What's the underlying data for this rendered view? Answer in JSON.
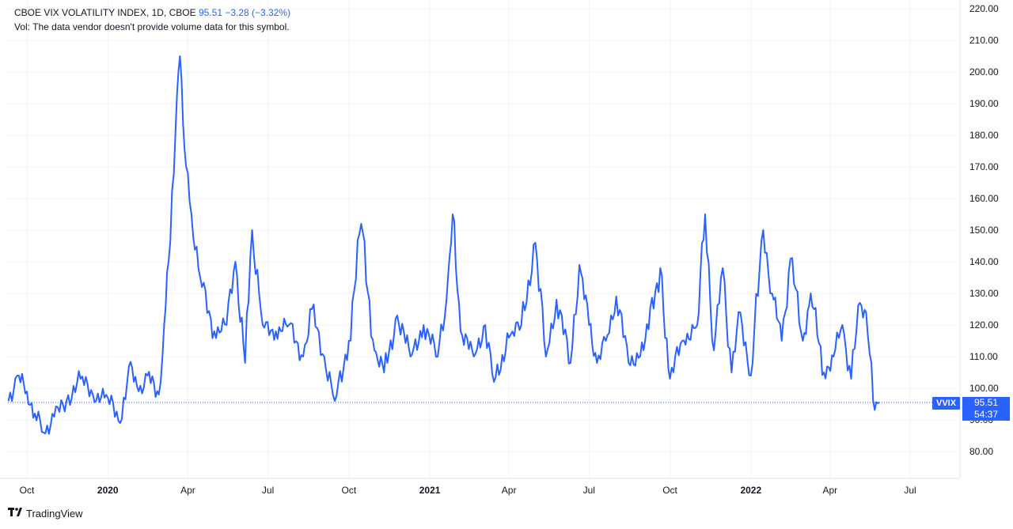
{
  "legend": {
    "symbol_line": "CBOE VIX VOLATILITY INDEX, 1D, CBOE",
    "last": "95.51",
    "change": "−3.28 (−3.32%)",
    "volume_note": "Vol: The data vendor doesn't provide volume data for this symbol."
  },
  "price_scale": {
    "symbol_tag": "VVIX",
    "last_price": "95.51",
    "countdown": "54:37"
  },
  "brand": {
    "name": "TradingView"
  },
  "colors": {
    "line": "#2962ff",
    "grid": "#f0f3fa",
    "text": "#131722",
    "axis_border": "#e0e3eb"
  },
  "chart_data": {
    "type": "line",
    "series": [
      {
        "name": "VVIX",
        "x": [
          "2019-09-10",
          "2019-09-20",
          "2019-10-01",
          "2019-10-10",
          "2019-10-20",
          "2019-11-01",
          "2019-11-15",
          "2019-12-01",
          "2019-12-15",
          "2020-01-01",
          "2020-01-15",
          "2020-01-25",
          "2020-02-05",
          "2020-02-15",
          "2020-02-28",
          "2020-03-05",
          "2020-03-10",
          "2020-03-18",
          "2020-03-23",
          "2020-03-30",
          "2020-04-05",
          "2020-04-15",
          "2020-05-01",
          "2020-05-15",
          "2020-05-25",
          "2020-06-05",
          "2020-06-13",
          "2020-06-25",
          "2020-07-10",
          "2020-07-25",
          "2020-08-10",
          "2020-08-20",
          "2020-09-03",
          "2020-09-15",
          "2020-10-01",
          "2020-10-15",
          "2020-10-30",
          "2020-11-10",
          "2020-11-25",
          "2020-12-10",
          "2020-12-25",
          "2021-01-10",
          "2021-01-20",
          "2021-01-27",
          "2021-02-05",
          "2021-02-20",
          "2021-03-05",
          "2021-03-15",
          "2021-04-01",
          "2021-04-15",
          "2021-05-01",
          "2021-05-13",
          "2021-05-25",
          "2021-06-10",
          "2021-06-20",
          "2021-07-01",
          "2021-07-10",
          "2021-07-20",
          "2021-08-01",
          "2021-08-15",
          "2021-09-01",
          "2021-09-20",
          "2021-10-01",
          "2021-10-15",
          "2021-11-01",
          "2021-11-10",
          "2021-11-20",
          "2021-11-30",
          "2021-12-10",
          "2021-12-20",
          "2022-01-01",
          "2022-01-15",
          "2022-01-25",
          "2022-02-05",
          "2022-02-15",
          "2022-03-01",
          "2022-03-10",
          "2022-03-25",
          "2022-04-05",
          "2022-04-15",
          "2022-04-25",
          "2022-05-05",
          "2022-05-12",
          "2022-05-20",
          "2022-05-27"
        ],
        "values": [
          96,
          104,
          99,
          92,
          86,
          91,
          96,
          103,
          98,
          97,
          89,
          107,
          99,
          104,
          98,
          120,
          140,
          182,
          205,
          170,
          155,
          135,
          118,
          120,
          140,
          108,
          150,
          120,
          118,
          120,
          110,
          125,
          110,
          96,
          115,
          152,
          112,
          105,
          123,
          110,
          120,
          110,
          128,
          155,
          118,
          110,
          120,
          102,
          116,
          120,
          146,
          110,
          128,
          108,
          139,
          120,
          108,
          115,
          129,
          108,
          112,
          138,
          103,
          115,
          120,
          155,
          112,
          138,
          105,
          124,
          104,
          150,
          130,
          115,
          141,
          115,
          130,
          105,
          110,
          120,
          103,
          127,
          124,
          96,
          95.51
        ]
      }
    ],
    "xlabel": "",
    "ylabel": "",
    "ylim": [
      75,
      222
    ],
    "y_ticks": [
      80,
      90,
      100,
      110,
      120,
      130,
      140,
      150,
      160,
      170,
      180,
      190,
      200,
      210,
      220
    ],
    "y_tick_labels": [
      "80.00",
      "90.00",
      "100.00",
      "110.00",
      "120.00",
      "130.00",
      "140.00",
      "150.00",
      "160.00",
      "170.00",
      "180.00",
      "190.00",
      "200.00",
      "210.00",
      "220.00"
    ],
    "x_ticks": [
      "2019-10-01",
      "2020-01-01",
      "2020-04-01",
      "2020-07-01",
      "2020-10-01",
      "2021-01-01",
      "2021-04-01",
      "2021-07-01",
      "2021-10-01",
      "2022-01-01",
      "2022-04-01",
      "2022-07-01"
    ],
    "x_tick_labels": [
      "Oct",
      "2020",
      "Apr",
      "Jul",
      "Oct",
      "2021",
      "Apr",
      "Jul",
      "Oct",
      "2022",
      "Apr",
      "Jul"
    ],
    "bold_x_labels": [
      "2020",
      "2021",
      "2022"
    ],
    "last_value_line": 95.51,
    "grid": true
  }
}
